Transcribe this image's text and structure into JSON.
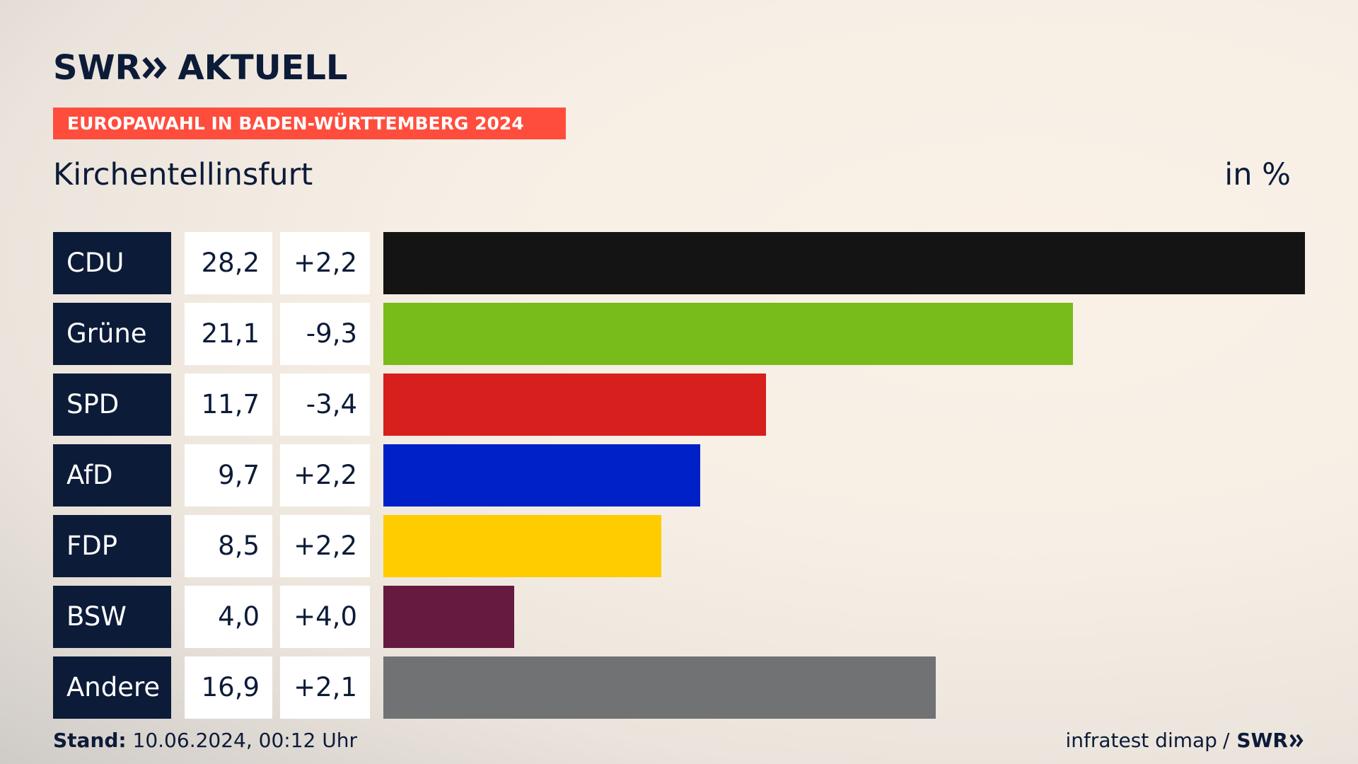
{
  "logo": {
    "brand": "SWR",
    "product": "AKTUELL"
  },
  "banner": "EUROPAWAHL IN BADEN-WÜRTTEMBERG 2024",
  "subtitle": "Kirchentellinsfurt",
  "unit": "in %",
  "footer": {
    "stand_label": "Stand:",
    "stand_value": "10.06.2024, 00:12 Uhr",
    "source": "infratest dimap",
    "separator": "/",
    "source_logo": "SWR"
  },
  "chart_data": {
    "type": "bar",
    "orientation": "horizontal",
    "categories": [
      "CDU",
      "Grüne",
      "SPD",
      "AfD",
      "FDP",
      "BSW",
      "Andere"
    ],
    "values": [
      28.2,
      21.1,
      11.7,
      9.7,
      8.5,
      4.0,
      16.9
    ],
    "value_labels": [
      "28,2",
      "21,1",
      "11,7",
      "9,7",
      "8,5",
      "4,0",
      "16,9"
    ],
    "changes": [
      2.2,
      -9.3,
      -3.4,
      2.2,
      2.2,
      4.0,
      2.1
    ],
    "change_labels": [
      "+2,2",
      "-9,3",
      "-3,4",
      "+2,2",
      "+2,2",
      "+4,0",
      "+2,1"
    ],
    "colors": [
      "#141414",
      "#78bc1b",
      "#d71f1d",
      "#0021c8",
      "#ffcc00",
      "#661a3f",
      "#717274"
    ],
    "xlim": [
      0,
      28.2
    ]
  }
}
